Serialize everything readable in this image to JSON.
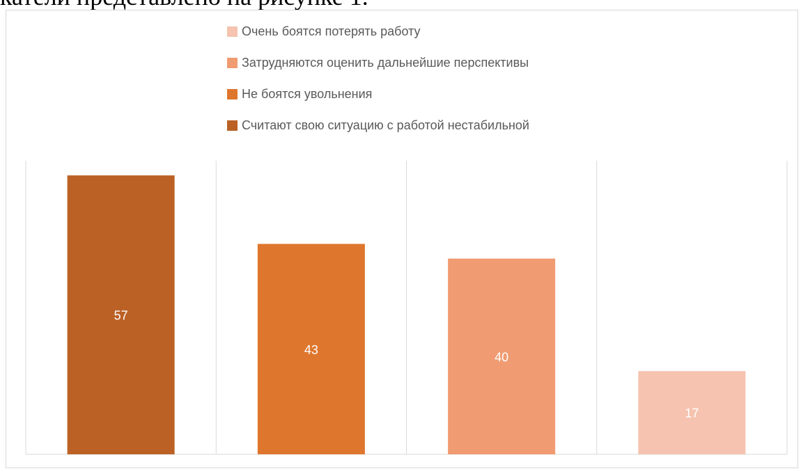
{
  "document": {
    "fragment_text": "катели представлено на рисунке 1."
  },
  "chart_data": {
    "type": "bar",
    "title": "",
    "xlabel": "",
    "ylabel": "",
    "categories": [
      "Считают свою ситуацию с работой нестабильной",
      "Не боятся увольнения",
      "Затрудняются оценить дальнейшие перспективы",
      "Очень боятся потерять работу"
    ],
    "values": [
      57,
      43,
      40,
      17
    ],
    "colors": [
      "#bb6125",
      "#df762e",
      "#f09b71",
      "#f5c3af"
    ],
    "ylim": [
      0,
      60
    ],
    "grid": "vertical-category-separators",
    "legend": {
      "position": "top",
      "entries": [
        {
          "label": "Очень боятся потерять работу",
          "color": "#f5c3af"
        },
        {
          "label": "Затрудняются оценить дальнейшие перспективы",
          "color": "#f09b71"
        },
        {
          "label": "Не боятся увольнения",
          "color": "#df762e"
        },
        {
          "label": "Считают свою ситуацию с работой нестабильной",
          "color": "#bb6125"
        }
      ]
    },
    "data_labels": [
      "57",
      "43",
      "40",
      "17"
    ],
    "data_label_color": "#ffffff"
  }
}
